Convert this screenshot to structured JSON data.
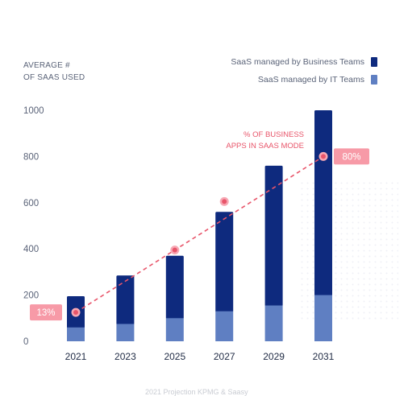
{
  "y_title_lines": [
    "AVERAGE #",
    "OF SAAS USED"
  ],
  "legend": [
    {
      "label": "SaaS managed by Business Teams",
      "color": "#0e2a7e"
    },
    {
      "label": "SaaS managed by IT Teams",
      "color": "#5f7fc2"
    }
  ],
  "footnote": "2021 Projection KPMG & Saasy",
  "chart_data": {
    "type": "bar",
    "stacked": true,
    "categories": [
      "2021",
      "2023",
      "2025",
      "2027",
      "2029",
      "2031"
    ],
    "series": [
      {
        "name": "SaaS managed by IT Teams",
        "color": "#5f7fc2",
        "values": [
          60,
          75,
          100,
          130,
          155,
          200
        ]
      },
      {
        "name": "SaaS managed by Business Teams",
        "color": "#0e2a7e",
        "values": [
          135,
          210,
          270,
          430,
          605,
          800
        ]
      }
    ],
    "ylim": [
      0,
      1000
    ],
    "yticks": [
      0,
      200,
      400,
      600,
      800,
      1000
    ],
    "grid": false,
    "overlay": {
      "type": "line",
      "style": "dashed",
      "color": "#e8556a",
      "label_lines": [
        "% OF BUSINESS",
        "APPS IN SAAS MODE"
      ],
      "points": [
        {
          "x": "2021",
          "y": 125,
          "label": "13%"
        },
        {
          "x": "2025",
          "y": 395
        },
        {
          "x": "2027",
          "y": 605
        },
        {
          "x": "2031",
          "y": 800,
          "label": "80%"
        }
      ]
    }
  }
}
